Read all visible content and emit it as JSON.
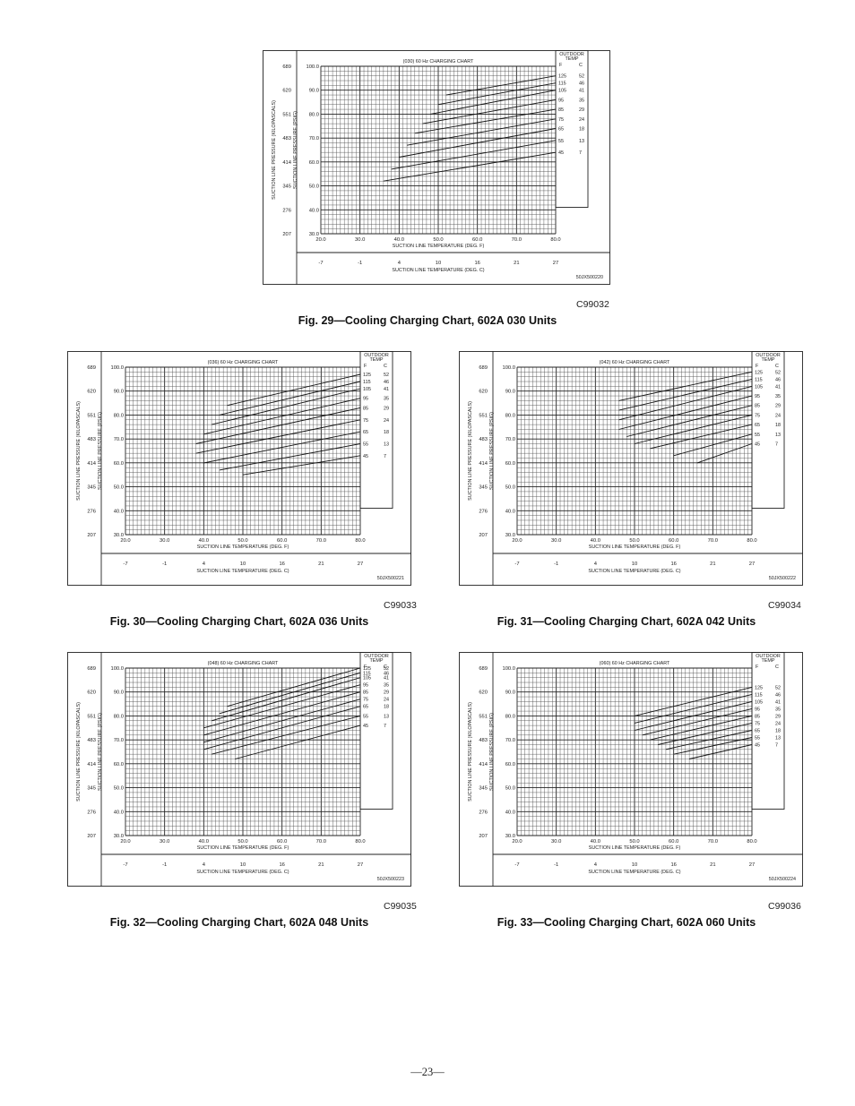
{
  "page": {
    "number_label": "—23—"
  },
  "chart_common": {
    "y_axis_psig_ticks": [
      "100.0",
      "90.0",
      "80.0",
      "70.0",
      "60.0",
      "50.0",
      "40.0",
      "30.0"
    ],
    "y_axis_kpa_ticks": [
      "689",
      "620",
      "551",
      "483",
      "414",
      "345",
      "276",
      "207"
    ],
    "x_axis_f_ticks": [
      "20.0",
      "30.0",
      "40.0",
      "50.0",
      "60.0",
      "70.0",
      "80.0"
    ],
    "x_axis_c_ticks": [
      "-7",
      "-1",
      "4",
      "10",
      "16",
      "21",
      "27"
    ],
    "y_label_psig": "SUCTION LINE PRESSURE (PSIG)",
    "y_label_kpa": "SUCTION LINE PRESSURE (KILOPASCALS)",
    "x_label_f": "SUCTION LINE TEMPERATURE (DEG. F)",
    "x_label_c": "SUCTION LINE TEMPERATURE (DEG. C)",
    "legend_title_1": "OUTDOOR",
    "legend_title_2": "TEMP",
    "legend_f_header": "F",
    "legend_c_header": "C"
  },
  "figures": [
    {
      "chart_title": "(030) 60 Hz CHARGING CHART",
      "drawing_no": "50JX500220",
      "code": "C99032",
      "caption": "Fig. 29—Cooling Charging Chart, 602A 030 Units",
      "legend": [
        [
          "125",
          "52"
        ],
        [
          "115",
          "46"
        ],
        [
          "105",
          "41"
        ],
        [
          "95",
          "35"
        ],
        [
          "85",
          "29"
        ],
        [
          "75",
          "24"
        ],
        [
          "65",
          "18"
        ],
        [
          "55",
          "13"
        ],
        [
          "45",
          "7"
        ]
      ]
    },
    {
      "chart_title": "(036) 60 Hz CHARGING CHART",
      "drawing_no": "50JX500221",
      "code": "C99033",
      "caption": "Fig. 30—Cooling Charging Chart, 602A 036 Units",
      "legend": [
        [
          "125",
          "52"
        ],
        [
          "115",
          "46"
        ],
        [
          "105",
          "41"
        ],
        [
          "95",
          "35"
        ],
        [
          "85",
          "29"
        ],
        [
          "75",
          "24"
        ],
        [
          "65",
          "18"
        ],
        [
          "55",
          "13"
        ],
        [
          "45",
          "7"
        ]
      ]
    },
    {
      "chart_title": "(042) 60 Hz CHARGING CHART",
      "drawing_no": "50JX500222",
      "code": "C99034",
      "caption": "Fig. 31—Cooling Charging Chart, 602A 042 Units",
      "legend": [
        [
          "125",
          "52"
        ],
        [
          "115",
          "46"
        ],
        [
          "105",
          "41"
        ],
        [
          "95",
          "35"
        ],
        [
          "85",
          "29"
        ],
        [
          "75",
          "24"
        ],
        [
          "65",
          "18"
        ],
        [
          "55",
          "13"
        ],
        [
          "45",
          "7"
        ]
      ]
    },
    {
      "chart_title": "(048) 60 Hz CHARGING CHART",
      "drawing_no": "50JX500223",
      "code": "C99035",
      "caption": "Fig. 32—Cooling Charging Chart, 602A 048 Units",
      "legend": [
        [
          "125",
          "52"
        ],
        [
          "115",
          "46"
        ],
        [
          "105",
          "41"
        ],
        [
          "95",
          "35"
        ],
        [
          "85",
          "29"
        ],
        [
          "75",
          "24"
        ],
        [
          "65",
          "18"
        ],
        [
          "55",
          "13"
        ],
        [
          "45",
          "7"
        ]
      ]
    },
    {
      "chart_title": "(060) 60 Hz CHARGING CHART",
      "drawing_no": "50JX500224",
      "code": "C99036",
      "caption": "Fig. 33—Cooling Charging Chart, 602A 060 Units",
      "legend": [
        [
          "125",
          "52"
        ],
        [
          "115",
          "46"
        ],
        [
          "105",
          "41"
        ],
        [
          "95",
          "35"
        ],
        [
          "85",
          "29"
        ],
        [
          "75",
          "24"
        ],
        [
          "65",
          "18"
        ],
        [
          "55",
          "13"
        ],
        [
          "45",
          "7"
        ]
      ]
    }
  ],
  "chart_data": [
    {
      "type": "line",
      "title": "(030) 60 Hz CHARGING CHART",
      "xlabel": "SUCTION LINE TEMPERATURE (DEG. F)",
      "ylabel": "SUCTION LINE PRESSURE (PSIG)",
      "xlim": [
        20,
        80
      ],
      "ylim": [
        30,
        100
      ],
      "grid": true,
      "legend_placement": "right",
      "series": [
        {
          "name": "125",
          "x": [
            52,
            80
          ],
          "y": [
            88,
            96
          ]
        },
        {
          "name": "115",
          "x": [
            50,
            80
          ],
          "y": [
            84,
            93
          ]
        },
        {
          "name": "105",
          "x": [
            48,
            80
          ],
          "y": [
            80,
            90
          ]
        },
        {
          "name": "95",
          "x": [
            46,
            80
          ],
          "y": [
            76,
            86
          ]
        },
        {
          "name": "85",
          "x": [
            44,
            80
          ],
          "y": [
            72,
            82
          ]
        },
        {
          "name": "75",
          "x": [
            42,
            80
          ],
          "y": [
            67,
            78
          ]
        },
        {
          "name": "65",
          "x": [
            40,
            80
          ],
          "y": [
            62,
            74
          ]
        },
        {
          "name": "55",
          "x": [
            38,
            80
          ],
          "y": [
            57,
            69
          ]
        },
        {
          "name": "45",
          "x": [
            36,
            80
          ],
          "y": [
            52,
            64
          ]
        }
      ]
    },
    {
      "type": "line",
      "title": "(036) 60 Hz CHARGING CHART",
      "xlabel": "SUCTION LINE TEMPERATURE (DEG. F)",
      "ylabel": "SUCTION LINE PRESSURE (PSIG)",
      "xlim": [
        20,
        80
      ],
      "ylim": [
        30,
        100
      ],
      "grid": true,
      "legend_placement": "right",
      "series": [
        {
          "name": "125",
          "x": [
            46,
            80
          ],
          "y": [
            84,
            97
          ]
        },
        {
          "name": "115",
          "x": [
            44,
            80
          ],
          "y": [
            80,
            94
          ]
        },
        {
          "name": "105",
          "x": [
            42,
            80
          ],
          "y": [
            76,
            91
          ]
        },
        {
          "name": "95",
          "x": [
            40,
            80
          ],
          "y": [
            72,
            87
          ]
        },
        {
          "name": "85",
          "x": [
            38,
            80
          ],
          "y": [
            68,
            83
          ]
        },
        {
          "name": "75",
          "x": [
            38,
            80
          ],
          "y": [
            64,
            78
          ]
        },
        {
          "name": "65",
          "x": [
            40,
            80
          ],
          "y": [
            60,
            73
          ]
        },
        {
          "name": "55",
          "x": [
            44,
            80
          ],
          "y": [
            57,
            68
          ]
        },
        {
          "name": "45",
          "x": [
            50,
            80
          ],
          "y": [
            55,
            63
          ]
        }
      ]
    },
    {
      "type": "line",
      "title": "(042) 60 Hz CHARGING CHART",
      "xlabel": "SUCTION LINE TEMPERATURE (DEG. F)",
      "ylabel": "SUCTION LINE PRESSURE (PSIG)",
      "xlim": [
        20,
        80
      ],
      "ylim": [
        30,
        100
      ],
      "grid": true,
      "legend_placement": "right",
      "series": [
        {
          "name": "125",
          "x": [
            46,
            80
          ],
          "y": [
            86,
            98
          ]
        },
        {
          "name": "115",
          "x": [
            46,
            80
          ],
          "y": [
            82,
            95
          ]
        },
        {
          "name": "105",
          "x": [
            46,
            80
          ],
          "y": [
            78,
            92
          ]
        },
        {
          "name": "95",
          "x": [
            46,
            80
          ],
          "y": [
            74,
            88
          ]
        },
        {
          "name": "85",
          "x": [
            48,
            80
          ],
          "y": [
            71,
            84
          ]
        },
        {
          "name": "75",
          "x": [
            50,
            80
          ],
          "y": [
            68,
            80
          ]
        },
        {
          "name": "65",
          "x": [
            54,
            80
          ],
          "y": [
            66,
            76
          ]
        },
        {
          "name": "55",
          "x": [
            60,
            80
          ],
          "y": [
            63,
            72
          ]
        },
        {
          "name": "45",
          "x": [
            66,
            80
          ],
          "y": [
            60,
            68
          ]
        }
      ]
    },
    {
      "type": "line",
      "title": "(048) 60 Hz CHARGING CHART",
      "xlabel": "SUCTION LINE TEMPERATURE (DEG. F)",
      "ylabel": "SUCTION LINE PRESSURE (PSIG)",
      "xlim": [
        20,
        80
      ],
      "ylim": [
        30,
        100
      ],
      "grid": true,
      "legend_placement": "right",
      "series": [
        {
          "name": "125",
          "x": [
            46,
            80
          ],
          "y": [
            84,
            100
          ]
        },
        {
          "name": "115",
          "x": [
            44,
            80
          ],
          "y": [
            81,
            98
          ]
        },
        {
          "name": "105",
          "x": [
            42,
            80
          ],
          "y": [
            78,
            96
          ]
        },
        {
          "name": "95",
          "x": [
            40,
            80
          ],
          "y": [
            75,
            93
          ]
        },
        {
          "name": "85",
          "x": [
            40,
            80
          ],
          "y": [
            72,
            90
          ]
        },
        {
          "name": "75",
          "x": [
            40,
            80
          ],
          "y": [
            69,
            87
          ]
        },
        {
          "name": "65",
          "x": [
            40,
            80
          ],
          "y": [
            66,
            84
          ]
        },
        {
          "name": "55",
          "x": [
            42,
            80
          ],
          "y": [
            64,
            80
          ]
        },
        {
          "name": "45",
          "x": [
            48,
            80
          ],
          "y": [
            62,
            76
          ]
        }
      ]
    },
    {
      "type": "line",
      "title": "(060) 60 Hz CHARGING CHART",
      "xlabel": "SUCTION LINE TEMPERATURE (DEG. F)",
      "ylabel": "SUCTION LINE PRESSURE (PSIG)",
      "xlim": [
        20,
        80
      ],
      "ylim": [
        30,
        100
      ],
      "grid": true,
      "legend_placement": "right",
      "series": [
        {
          "name": "125",
          "x": [
            50,
            80
          ],
          "y": [
            80,
            92
          ]
        },
        {
          "name": "115",
          "x": [
            50,
            80
          ],
          "y": [
            77,
            89
          ]
        },
        {
          "name": "105",
          "x": [
            50,
            80
          ],
          "y": [
            74,
            86
          ]
        },
        {
          "name": "95",
          "x": [
            52,
            80
          ],
          "y": [
            72,
            83
          ]
        },
        {
          "name": "85",
          "x": [
            54,
            80
          ],
          "y": [
            70,
            80
          ]
        },
        {
          "name": "75",
          "x": [
            56,
            80
          ],
          "y": [
            68,
            77
          ]
        },
        {
          "name": "65",
          "x": [
            58,
            80
          ],
          "y": [
            66,
            74
          ]
        },
        {
          "name": "55",
          "x": [
            60,
            80
          ],
          "y": [
            64,
            71
          ]
        },
        {
          "name": "45",
          "x": [
            64,
            80
          ],
          "y": [
            62,
            68
          ]
        }
      ]
    }
  ]
}
